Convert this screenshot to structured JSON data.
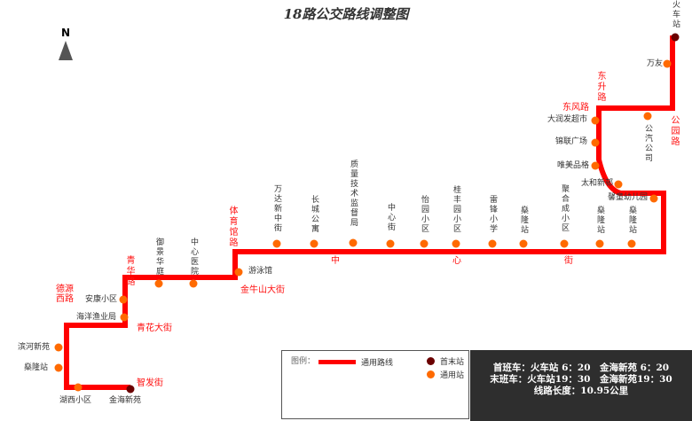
{
  "title": "18路公交路线调整图",
  "north_label": "N",
  "colors": {
    "route": "#ff0000",
    "station": "#ff6a00",
    "terminal": "#6b0000",
    "info_bg": "#2e2e2e"
  },
  "stations": [
    "金海新苑",
    "湖西小区",
    "燊隆站",
    "滨河新苑",
    "海洋渔业局",
    "安康小区",
    "御景华庭",
    "中心医院",
    "游泳馆",
    "万达新中街",
    "长城公寓",
    "质量技术监督局",
    "中心街",
    "怡园小区",
    "桂丰园小区",
    "雷锋小学",
    "燊隆站",
    "聚合成小区",
    "燊隆站",
    "燊隆站",
    "馨童幼儿园",
    "太和新邨",
    "唯美品格",
    "锦联广场",
    "大润发超市",
    "公汽公司",
    "万友",
    "火车站"
  ],
  "roads": [
    "智发街",
    "青花大街",
    "德源西路",
    "青华路",
    "金牛山大街",
    "体育馆路",
    "中",
    "心",
    "街",
    "东风路",
    "东升路",
    "公园路"
  ],
  "legend": {
    "title": "图例：",
    "route": "通用路线",
    "terminal": "首末站",
    "station": "通用站"
  },
  "info": {
    "first": "首班车：火车站 6：20　金海新苑 6：20",
    "last": "末班车：火车站19：30　金海新苑19：30",
    "length": "线路长度：10.95公里"
  }
}
